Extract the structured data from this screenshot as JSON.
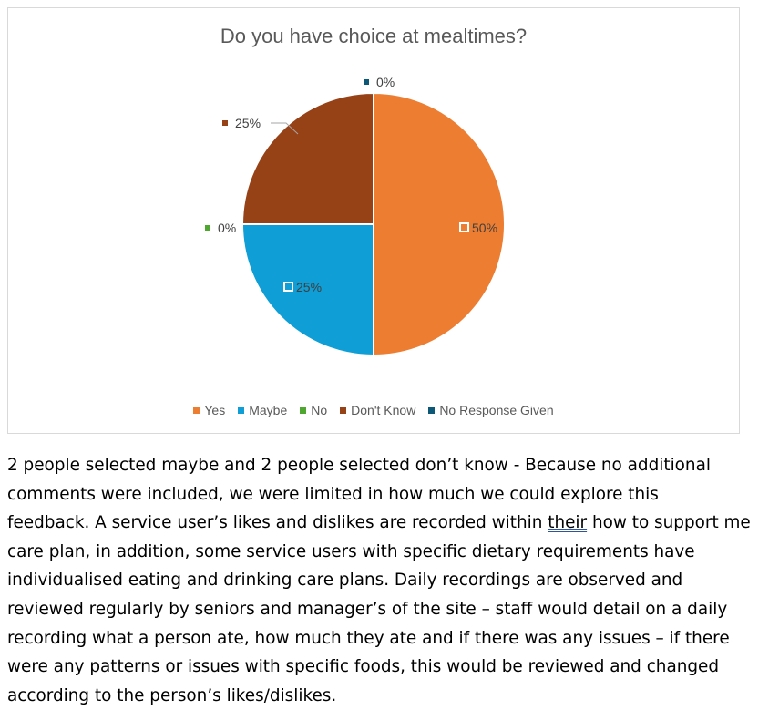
{
  "chart_data": {
    "type": "pie",
    "title": "Do you have choice at mealtimes?",
    "categories": [
      "Yes",
      "Maybe",
      "No",
      "Don't Know",
      "No Response Given"
    ],
    "values": [
      50,
      25,
      0,
      25,
      0
    ],
    "data_labels": [
      "50%",
      "25%",
      "0%",
      "25%",
      "0%"
    ],
    "colors": [
      "#ED7D31",
      "#0F9ED5",
      "#4EA72E",
      "#974117",
      "#0E5877"
    ],
    "legend_position": "bottom"
  },
  "text": {
    "line1": "2 people selected maybe and 2 people selected don’t know - Because no additional",
    "line2": "comments were included, we were limited in how much we could explore this",
    "line3a": "feedback. A service user’s likes and dislikes are recorded within ",
    "line3b": "their",
    "line3c": " how to support me",
    "line4": "care plan, in addition, some service users with specific dietary requirements have",
    "line5": "individualised eating and drinking care plans. Daily recordings are observed and",
    "line6": "reviewed regularly by seniors and manager’s of the site – staff would detail on a daily",
    "line7": "recording what a person ate, how much they ate and if there was any issues – if there",
    "line8": "were any patterns or issues with specific foods, this would be reviewed and changed",
    "line9": "according to the person’s likes/dislikes."
  }
}
